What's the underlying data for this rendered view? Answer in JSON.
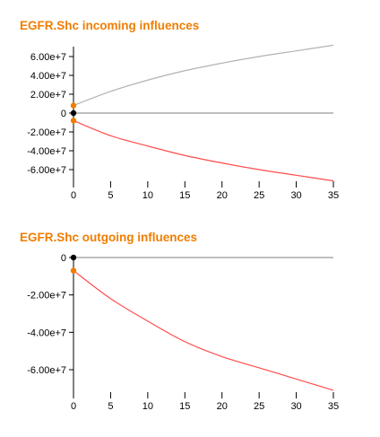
{
  "chart_data": [
    {
      "type": "line",
      "title": "EGFR.Shc incoming influences",
      "xlim": [
        0,
        35
      ],
      "ylim": [
        -70000000,
        70000000
      ],
      "x_ticks": [
        0,
        5,
        10,
        15,
        20,
        25,
        30,
        35
      ],
      "x_tick_labels": [
        "0",
        "5",
        "10",
        "15",
        "20",
        "25",
        "30",
        "35"
      ],
      "y_ticks": [
        60000000,
        40000000,
        20000000,
        0,
        -20000000,
        -40000000,
        -60000000
      ],
      "y_tick_labels": [
        "6.00e+7",
        "4.00e+7",
        "2.00e+7",
        "0",
        "-2.00e+7",
        "-4.00e+7",
        "-6.00e+7"
      ],
      "grid": false,
      "series": [
        {
          "color": "#b3b3b3",
          "x": [
            0,
            5,
            10,
            15,
            20,
            25,
            30,
            35
          ],
          "y": [
            8000000,
            23000000,
            35000000,
            45000000,
            53000000,
            60000000,
            66000000,
            72000000
          ]
        },
        {
          "color": "#999999",
          "x": [
            0,
            35
          ],
          "y": [
            0,
            0
          ]
        },
        {
          "color": "#ff4d4d",
          "x": [
            0,
            5,
            10,
            15,
            20,
            25,
            30,
            35
          ],
          "y": [
            -8000000,
            -24000000,
            -35000000,
            -45000000,
            -53000000,
            -60000000,
            -66000000,
            -72000000
          ]
        }
      ],
      "markers": [
        {
          "x": 0,
          "y": 8000000,
          "color": "#f07d00"
        },
        {
          "x": 0,
          "y": 0,
          "color": "#000000"
        },
        {
          "x": 0,
          "y": -8000000,
          "color": "#f07d00"
        }
      ]
    },
    {
      "type": "line",
      "title": "EGFR.Shc outgoing influences",
      "xlim": [
        0,
        35
      ],
      "ylim": [
        -72000000,
        0
      ],
      "x_ticks": [
        0,
        5,
        10,
        15,
        20,
        25,
        30,
        35
      ],
      "x_tick_labels": [
        "0",
        "5",
        "10",
        "15",
        "20",
        "25",
        "30",
        "35"
      ],
      "y_ticks": [
        0,
        -20000000,
        -40000000,
        -60000000
      ],
      "y_tick_labels": [
        "0",
        "-2.00e+7",
        "-4.00e+7",
        "-6.00e+7"
      ],
      "grid": false,
      "series": [
        {
          "color": "#999999",
          "x": [
            0,
            35
          ],
          "y": [
            0,
            0
          ]
        },
        {
          "color": "#ff4d4d",
          "x": [
            0,
            5,
            10,
            15,
            20,
            25,
            30,
            35
          ],
          "y": [
            -7000000,
            -22000000,
            -34000000,
            -45000000,
            -53000000,
            -59000000,
            -65000000,
            -71000000
          ]
        }
      ],
      "markers": [
        {
          "x": 0,
          "y": 0,
          "color": "#000000"
        },
        {
          "x": 0,
          "y": -7000000,
          "color": "#f07d00"
        }
      ]
    }
  ]
}
